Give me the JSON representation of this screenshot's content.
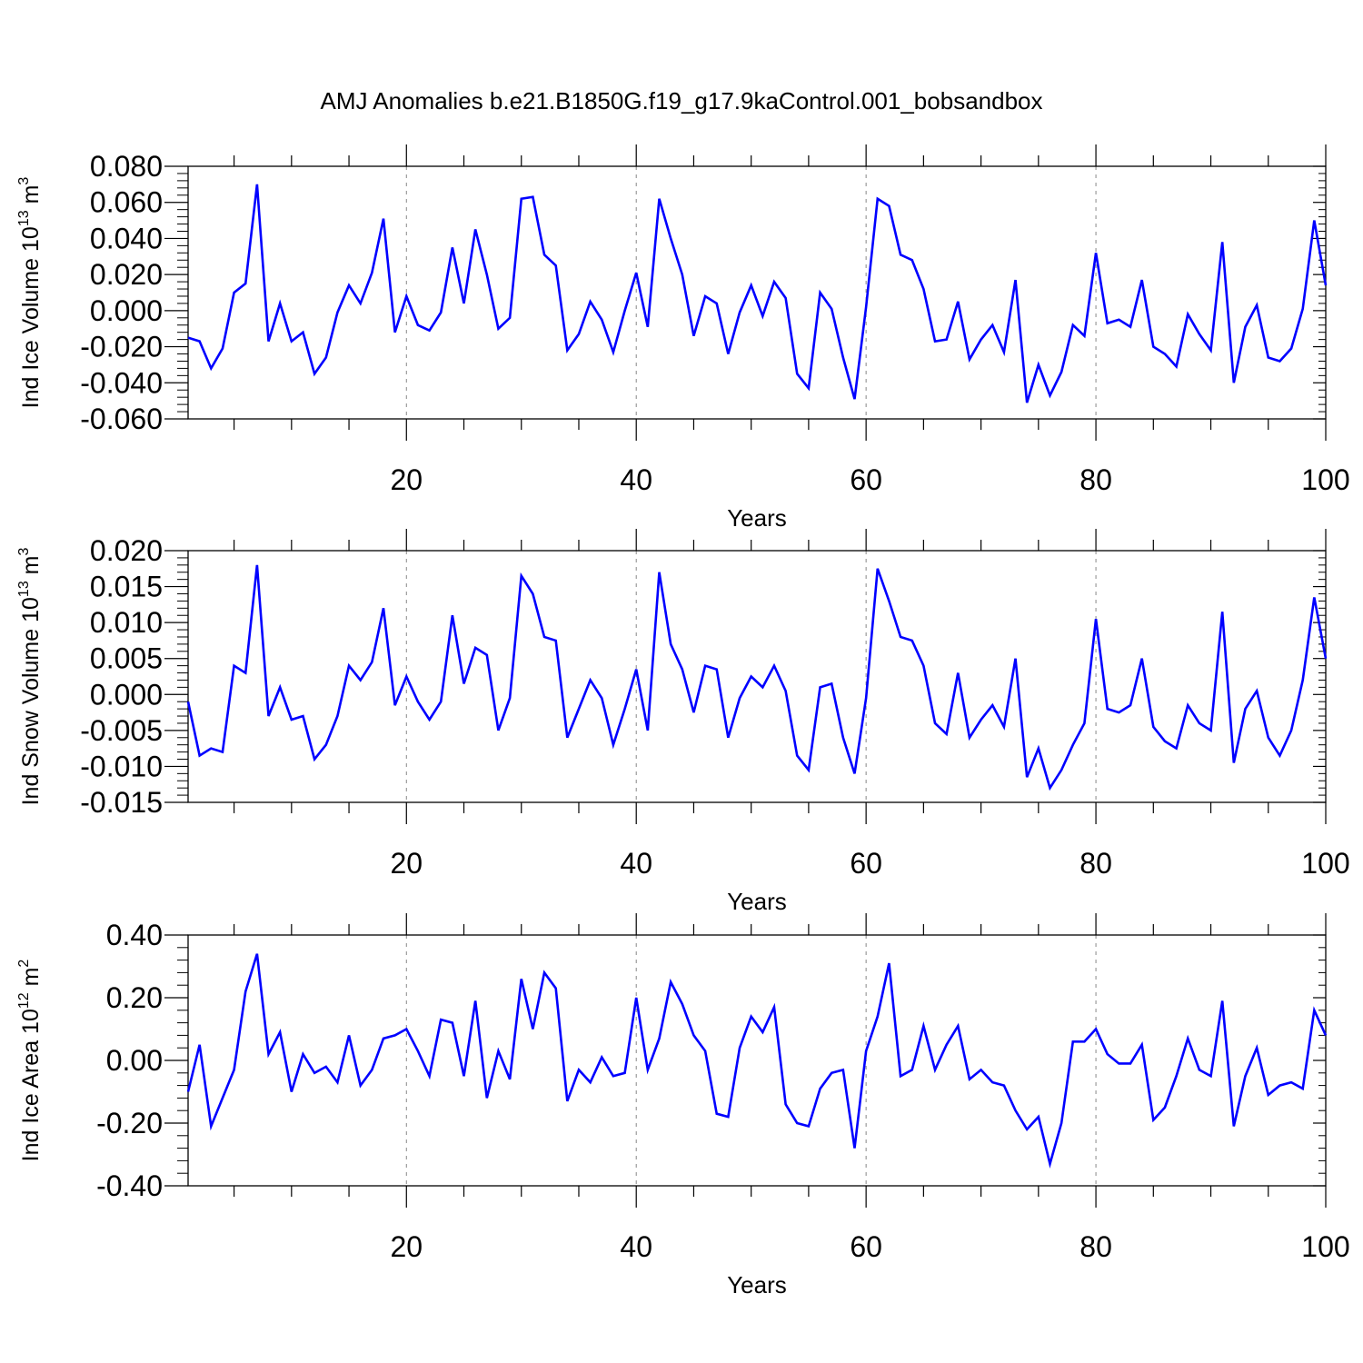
{
  "figure": {
    "title": "AMJ Anomalies b.e21.B1850G.f19_g17.9kaControl.001_bobsandbox"
  },
  "chart_data": [
    {
      "type": "line",
      "ylabel": "Ind Ice Volume 10",
      "ylabel_exp": "13",
      "ylabel_unit": " m",
      "ylabel_unit_exp": "3",
      "xlabel": "Years",
      "xlim": [
        1,
        100
      ],
      "ylim": [
        -0.06,
        0.08
      ],
      "yticks": [
        -0.06,
        -0.04,
        -0.02,
        0.0,
        0.02,
        0.04,
        0.06,
        0.08
      ],
      "ytick_labels": [
        "-0.060",
        "-0.040",
        "-0.020",
        "0.000",
        "0.020",
        "0.040",
        "0.060",
        "0.080"
      ],
      "xticks": [
        20,
        40,
        60,
        80,
        100
      ],
      "xtick_labels": [
        "20",
        "40",
        "60",
        "80",
        "100"
      ],
      "grid_x": [
        20,
        40,
        60,
        80
      ],
      "line_color": "#0000ff",
      "values": [
        -0.015,
        -0.017,
        -0.032,
        -0.021,
        0.01,
        0.015,
        0.07,
        -0.017,
        0.004,
        -0.017,
        -0.012,
        -0.035,
        -0.026,
        -0.001,
        0.014,
        0.004,
        0.021,
        0.051,
        -0.012,
        0.008,
        -0.008,
        -0.011,
        -0.001,
        0.035,
        0.004,
        0.045,
        0.02,
        -0.01,
        -0.004,
        0.062,
        0.063,
        0.031,
        0.025,
        -0.022,
        -0.013,
        0.005,
        -0.005,
        -0.023,
        0.0,
        0.021,
        -0.009,
        0.062,
        0.04,
        0.02,
        -0.014,
        0.008,
        0.004,
        -0.024,
        -0.001,
        0.014,
        -0.003,
        0.016,
        0.007,
        -0.035,
        -0.043,
        0.01,
        0.001,
        -0.026,
        -0.049,
        0.002,
        0.062,
        0.058,
        0.031,
        0.028,
        0.012,
        -0.017,
        -0.016,
        0.005,
        -0.027,
        -0.016,
        -0.008,
        -0.023,
        0.017,
        -0.051,
        -0.03,
        -0.047,
        -0.034,
        -0.008,
        -0.014,
        0.032,
        -0.007,
        -0.005,
        -0.009,
        0.017,
        -0.02,
        -0.024,
        -0.031,
        -0.002,
        -0.013,
        -0.022,
        0.038,
        -0.04,
        -0.009,
        0.003,
        -0.026,
        -0.028,
        -0.021,
        0.001,
        0.05,
        0.014
      ]
    },
    {
      "type": "line",
      "ylabel": "Ind Snow Volume 10",
      "ylabel_exp": "13",
      "ylabel_unit": " m",
      "ylabel_unit_exp": "3",
      "xlabel": "Years",
      "xlim": [
        1,
        100
      ],
      "ylim": [
        -0.015,
        0.02
      ],
      "yticks": [
        -0.015,
        -0.01,
        -0.005,
        0.0,
        0.005,
        0.01,
        0.015,
        0.02
      ],
      "ytick_labels": [
        "-0.015",
        "-0.010",
        "-0.005",
        "0.000",
        "0.005",
        "0.010",
        "0.015",
        "0.020"
      ],
      "xticks": [
        20,
        40,
        60,
        80,
        100
      ],
      "xtick_labels": [
        "20",
        "40",
        "60",
        "80",
        "100"
      ],
      "grid_x": [
        20,
        40,
        60,
        80
      ],
      "line_color": "#0000ff",
      "values": [
        -0.001,
        -0.0085,
        -0.0075,
        -0.008,
        0.004,
        0.003,
        0.018,
        -0.003,
        0.001,
        -0.0035,
        -0.003,
        -0.009,
        -0.007,
        -0.003,
        0.004,
        0.002,
        0.0045,
        0.012,
        -0.0015,
        0.0025,
        -0.001,
        -0.0035,
        -0.001,
        0.011,
        0.0015,
        0.0065,
        0.0055,
        -0.005,
        -0.0005,
        0.0165,
        0.014,
        0.008,
        0.0075,
        -0.006,
        -0.002,
        0.002,
        -0.0005,
        -0.007,
        -0.002,
        0.0035,
        -0.005,
        0.017,
        0.007,
        0.0035,
        -0.0025,
        0.004,
        0.0035,
        -0.006,
        -0.0005,
        0.0025,
        0.001,
        0.004,
        0.0005,
        -0.0085,
        -0.0105,
        0.001,
        0.0015,
        -0.006,
        -0.011,
        -0.0005,
        0.0175,
        0.013,
        0.008,
        0.0075,
        0.004,
        -0.004,
        -0.0055,
        0.003,
        -0.006,
        -0.0035,
        -0.0015,
        -0.0045,
        0.005,
        -0.0115,
        -0.0075,
        -0.013,
        -0.0105,
        -0.007,
        -0.004,
        0.0105,
        -0.002,
        -0.0025,
        -0.0015,
        0.005,
        -0.0045,
        -0.0065,
        -0.0075,
        -0.0015,
        -0.004,
        -0.005,
        0.0115,
        -0.0095,
        -0.002,
        0.0005,
        -0.006,
        -0.0085,
        -0.005,
        0.002,
        0.0135,
        0.005
      ]
    },
    {
      "type": "line",
      "ylabel": "Ind Ice Area 10",
      "ylabel_exp": "12",
      "ylabel_unit": " m",
      "ylabel_unit_exp": "2",
      "xlabel": "Years",
      "xlim": [
        1,
        100
      ],
      "ylim": [
        -0.4,
        0.4
      ],
      "yticks": [
        -0.4,
        -0.2,
        0.0,
        0.2,
        0.4
      ],
      "ytick_labels": [
        "-0.40",
        "-0.20",
        "0.00",
        "0.20",
        "0.40"
      ],
      "xticks": [
        20,
        40,
        60,
        80,
        100
      ],
      "xtick_labels": [
        "20",
        "40",
        "60",
        "80",
        "100"
      ],
      "grid_x": [
        20,
        40,
        60,
        80
      ],
      "line_color": "#0000ff",
      "values": [
        -0.1,
        0.05,
        -0.21,
        -0.12,
        -0.03,
        0.22,
        0.34,
        0.02,
        0.09,
        -0.1,
        0.02,
        -0.04,
        -0.02,
        -0.07,
        0.08,
        -0.08,
        -0.03,
        0.07,
        0.08,
        0.1,
        0.03,
        -0.05,
        0.13,
        0.12,
        -0.05,
        0.19,
        -0.12,
        0.03,
        -0.06,
        0.26,
        0.1,
        0.28,
        0.23,
        -0.13,
        -0.03,
        -0.07,
        0.01,
        -0.05,
        -0.04,
        0.2,
        -0.03,
        0.07,
        0.25,
        0.18,
        0.08,
        0.03,
        -0.17,
        -0.18,
        0.04,
        0.14,
        0.09,
        0.17,
        -0.14,
        -0.2,
        -0.21,
        -0.09,
        -0.04,
        -0.03,
        -0.28,
        0.03,
        0.14,
        0.31,
        -0.05,
        -0.03,
        0.11,
        -0.03,
        0.05,
        0.11,
        -0.06,
        -0.03,
        -0.07,
        -0.08,
        -0.16,
        -0.22,
        -0.18,
        -0.33,
        -0.2,
        0.06,
        0.06,
        0.1,
        0.02,
        -0.01,
        -0.01,
        0.05,
        -0.19,
        -0.15,
        -0.05,
        0.07,
        -0.03,
        -0.05,
        0.19,
        -0.21,
        -0.05,
        0.04,
        -0.11,
        -0.08,
        -0.07,
        -0.09,
        0.16,
        0.08
      ]
    }
  ]
}
